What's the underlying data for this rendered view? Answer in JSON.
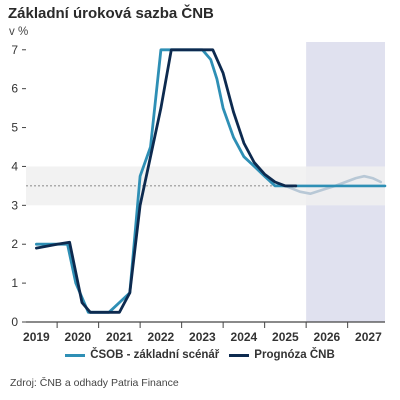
{
  "title": "Základní úroková sazba ČNB",
  "unit": "v %",
  "source": "Zdroj: ČNB a odhady Patria Finance",
  "colors": {
    "csob": "#2e8fb5",
    "cnb": "#0d2a4f",
    "forecast": "#b8c8d6",
    "forecast_area": "#e0e1ef",
    "band": "#f0f0f0",
    "ref_line": "#666666",
    "axis": "#444444"
  },
  "chart_data": {
    "type": "line",
    "title": "Základní úroková sazba ČNB",
    "ylabel": "v %",
    "xlabel": "",
    "xlim": [
      2018.75,
      2027.4
    ],
    "ylim": [
      0,
      7.2
    ],
    "y_ticks": [
      0,
      1,
      2,
      3,
      4,
      5,
      6,
      7
    ],
    "x_tick_labels": [
      "2019",
      "2020",
      "2021",
      "2022",
      "2023",
      "2024",
      "2025",
      "2026",
      "2027"
    ],
    "forecast_region": [
      2025.5,
      2027.4
    ],
    "reference_line": 3.5,
    "reference_band": [
      3.0,
      4.0
    ],
    "grid": false,
    "legend_position": "bottom",
    "series": [
      {
        "name": "ČSOB - základní scénář",
        "color": "#2e8fb5",
        "x": [
          2019.0,
          2019.5,
          2019.75,
          2019.95,
          2020.25,
          2020.75,
          2021.25,
          2021.5,
          2021.75,
          2022.0,
          2022.2,
          2022.5,
          2023.0,
          2023.2,
          2023.35,
          2023.5,
          2023.75,
          2024.0,
          2024.25,
          2024.5,
          2024.75,
          2025.0,
          2025.25
        ],
        "values": [
          2.0,
          2.0,
          2.0,
          1.0,
          0.25,
          0.25,
          0.75,
          3.75,
          4.5,
          7.0,
          7.0,
          7.0,
          7.0,
          6.75,
          6.25,
          5.5,
          4.75,
          4.25,
          4.0,
          3.75,
          3.5,
          3.5,
          3.5
        ]
      },
      {
        "name": "Prognóza ČNB",
        "color": "#0d2a4f",
        "x": [
          2019.0,
          2019.5,
          2019.8,
          2020.1,
          2020.3,
          2020.75,
          2021.0,
          2021.25,
          2021.5,
          2021.75,
          2022.0,
          2022.25,
          2022.5,
          2023.0,
          2023.25,
          2023.5,
          2023.75,
          2024.0,
          2024.25,
          2024.5,
          2024.75,
          2025.0,
          2025.25
        ],
        "values": [
          1.9,
          2.0,
          2.05,
          0.5,
          0.25,
          0.25,
          0.25,
          0.75,
          3.0,
          4.25,
          5.5,
          7.0,
          7.0,
          7.0,
          7.0,
          6.4,
          5.4,
          4.6,
          4.1,
          3.8,
          3.6,
          3.5,
          3.5
        ]
      },
      {
        "name": "forecast-ext",
        "color": "#b8c8d6",
        "x": [
          2025.0,
          2025.35,
          2025.6,
          2025.9,
          2026.2,
          2026.45,
          2026.7,
          2026.9,
          2027.1,
          2027.3
        ],
        "values": [
          3.5,
          3.35,
          3.3,
          3.4,
          3.5,
          3.6,
          3.7,
          3.75,
          3.7,
          3.6
        ]
      },
      {
        "name": "forecast-flat",
        "color": "#2e8fb5",
        "x": [
          2025.25,
          2027.4
        ],
        "values": [
          3.5,
          3.5
        ]
      }
    ]
  },
  "legend": [
    {
      "label": "ČSOB - základní scénář",
      "color": "#2e8fb5"
    },
    {
      "label": "Prognóza ČNB",
      "color": "#0d2a4f"
    }
  ]
}
